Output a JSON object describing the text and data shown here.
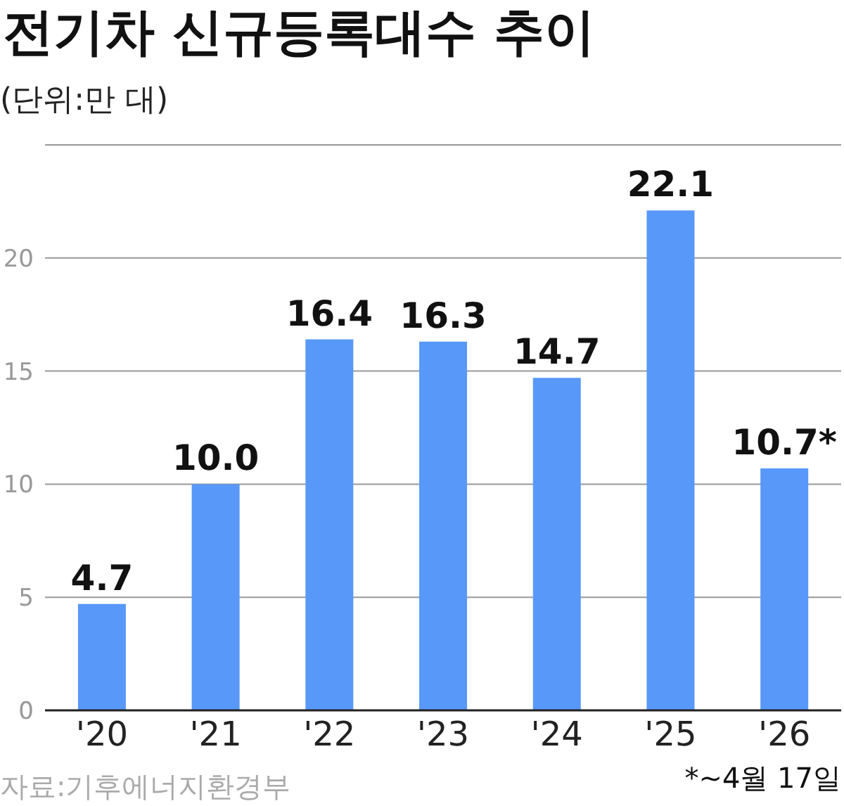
{
  "chart_data": {
    "type": "bar",
    "title": "전기차 신규등록대수 추이",
    "subtitle": "(단위:만 대)",
    "categories": [
      "'20",
      "'21",
      "'22",
      "'23",
      "'24",
      "'25",
      "'26"
    ],
    "values": [
      4.7,
      10.0,
      16.4,
      16.3,
      14.7,
      22.1,
      10.7
    ],
    "value_labels": [
      "4.7",
      "10.0",
      "16.4",
      "16.3",
      "14.7",
      "22.1",
      "10.7*"
    ],
    "color": "#5898f8",
    "ylim": [
      0,
      25
    ],
    "yticks": [
      0,
      5,
      10,
      15,
      20
    ],
    "grid": "y",
    "annotations": [
      "자료:기후에너지환경부",
      "*~4월 17일"
    ]
  }
}
